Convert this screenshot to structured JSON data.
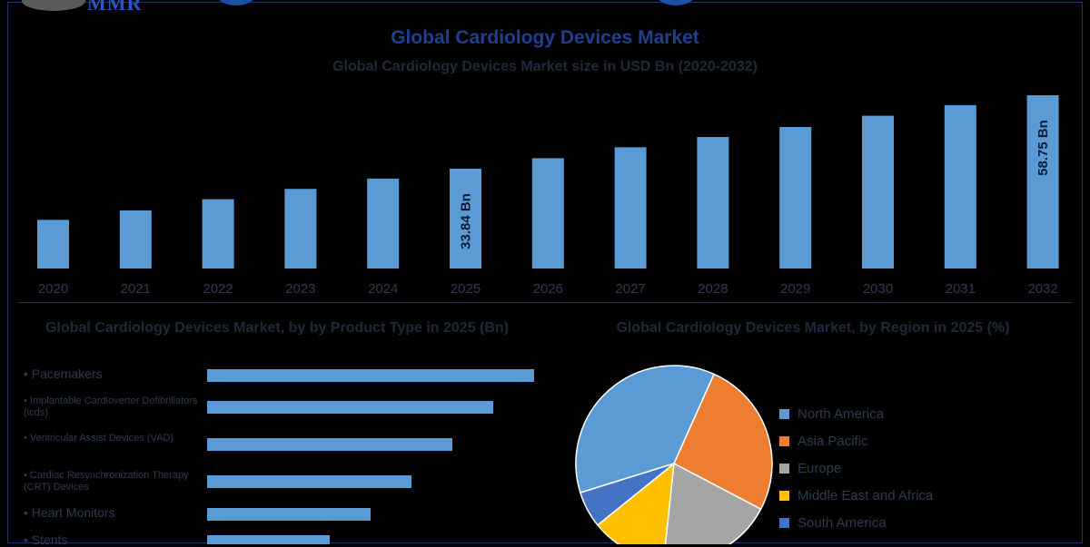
{
  "brand": {
    "logo_text": "MMR"
  },
  "header": {
    "title": "Global Cardiology Devices Market",
    "subtitle": "Global Cardiology Devices Market size in USD Bn (2020-2032)"
  },
  "colors": {
    "bar": "#5b9bd5",
    "background": "#000000",
    "title": "#1f3f8f"
  },
  "chart_data": [
    {
      "type": "bar",
      "title": "Global Cardiology Devices Market size in USD Bn (2020-2032)",
      "categories": [
        "2020",
        "2021",
        "2022",
        "2023",
        "2024",
        "2025",
        "2026",
        "2027",
        "2028",
        "2029",
        "2030",
        "2031",
        "2032"
      ],
      "values": [
        16.5,
        19.7,
        23.5,
        27.0,
        30.5,
        33.84,
        37.4,
        41.1,
        44.6,
        48.0,
        51.8,
        55.4,
        58.75
      ],
      "data_labels": {
        "5": "33.84 Bn",
        "12": "58.75 Bn"
      },
      "ylim": [
        0,
        59.5
      ],
      "grid": false
    },
    {
      "type": "bar",
      "orientation": "horizontal",
      "title": "Global Cardiology Devices Market, by by Product Type in 2025 (Bn)",
      "categories": [
        "• Pacemakers",
        "• Implantable Cardioverter Defibrillators (icds)",
        "• Ventricular Assist Devices (VAD)",
        "• Cardiac Resynchronization Therapy (CRT) Devices",
        "• Heart Monitors",
        "• Stents"
      ],
      "values": [
        360,
        315,
        270,
        225,
        180,
        135
      ],
      "xlim": [
        0,
        360
      ]
    },
    {
      "type": "pie",
      "title": "Global Cardiology Devices Market, by Region in 2025 (%)",
      "labels": [
        "North America",
        "Asia Pacific",
        "Europe",
        "Middle East and Africa",
        "South America"
      ],
      "values": [
        36.5,
        26.0,
        19.0,
        12.5,
        6.0
      ],
      "colors": [
        "#5b9bd5",
        "#ed7d31",
        "#a5a5a5",
        "#ffc000",
        "#4472c4"
      ],
      "legend": "right"
    }
  ]
}
